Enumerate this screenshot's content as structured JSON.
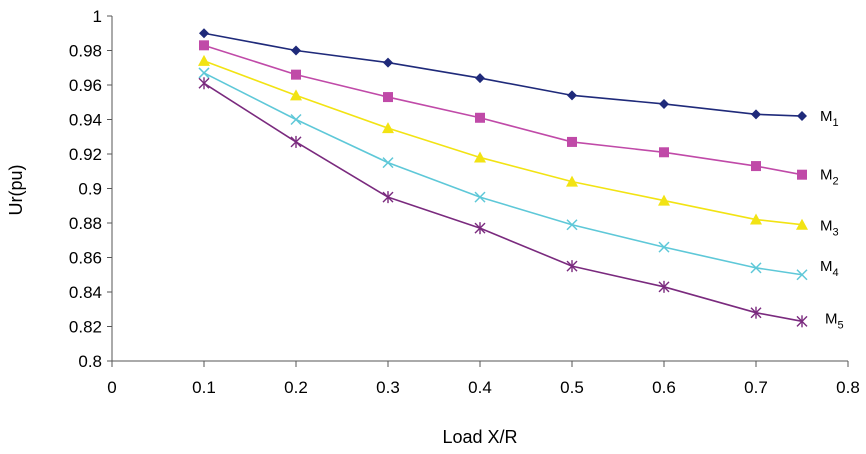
{
  "chart_data": {
    "type": "line",
    "title": "",
    "xlabel": "Load X/R",
    "ylabel": "Ur(pu)",
    "xlim": [
      0,
      0.8
    ],
    "ylim": [
      0.8,
      1.0
    ],
    "xticks": [
      "0",
      "0.1",
      "0.2",
      "0.3",
      "0.4",
      "0.5",
      "0.6",
      "0.7",
      "0.8"
    ],
    "yticks": [
      "0.8",
      "0.82",
      "0.84",
      "0.86",
      "0.88",
      "0.9",
      "0.92",
      "0.94",
      "0.96",
      "0.98",
      "1"
    ],
    "grid": false,
    "x": [
      0.1,
      0.2,
      0.3,
      0.4,
      0.5,
      0.6,
      0.7,
      0.75
    ],
    "series": [
      {
        "name": "M",
        "sub": "1",
        "color": "#1f2a7a",
        "marker": "diamond",
        "values": [
          0.99,
          0.98,
          0.973,
          0.964,
          0.954,
          0.949,
          0.943,
          0.942
        ]
      },
      {
        "name": "M",
        "sub": "2",
        "color": "#c04aa8",
        "marker": "square",
        "values": [
          0.983,
          0.966,
          0.953,
          0.941,
          0.927,
          0.921,
          0.913,
          0.908
        ]
      },
      {
        "name": "M",
        "sub": "3",
        "color": "#f2e313",
        "marker": "triangle",
        "values": [
          0.974,
          0.954,
          0.935,
          0.918,
          0.904,
          0.893,
          0.882,
          0.879
        ]
      },
      {
        "name": "M",
        "sub": "4",
        "color": "#5ec8d8",
        "marker": "x",
        "values": [
          0.967,
          0.94,
          0.915,
          0.895,
          0.879,
          0.866,
          0.854,
          0.85
        ]
      },
      {
        "name": "M",
        "sub": "5",
        "color": "#7a2a7e",
        "marker": "star",
        "values": [
          0.961,
          0.927,
          0.895,
          0.877,
          0.855,
          0.843,
          0.828,
          0.823
        ]
      }
    ]
  }
}
